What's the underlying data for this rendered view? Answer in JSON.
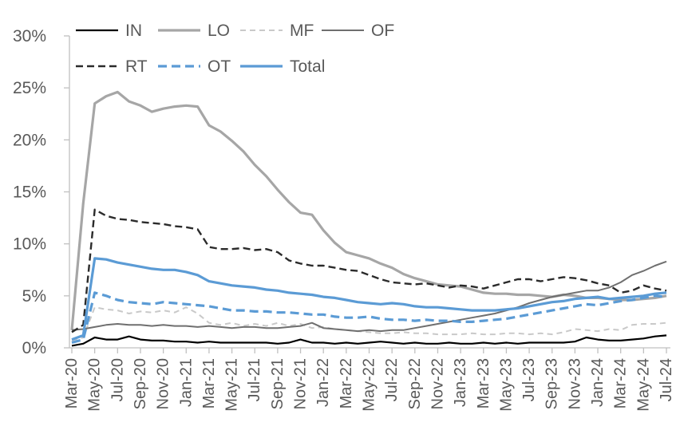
{
  "chart_data": {
    "type": "line",
    "title": "",
    "grid": false,
    "legend_position": "top",
    "ylim": [
      0,
      30
    ],
    "y_tick_labels": [
      "0%",
      "5%",
      "10%",
      "15%",
      "20%",
      "25%",
      "30%"
    ],
    "y_tick_values": [
      0,
      5,
      10,
      15,
      20,
      25,
      30
    ],
    "x_tick_labels": [
      "Mar-20",
      "May-20",
      "Jul-20",
      "Sep-20",
      "Nov-20",
      "Jan-21",
      "Mar-21",
      "May-21",
      "Jul-21",
      "Sep-21",
      "Nov-21",
      "Jan-22",
      "Mar-22",
      "May-22",
      "Jul-22",
      "Sep-22",
      "Nov-22",
      "Jan-23",
      "Mar-23",
      "May-23",
      "Jul-23",
      "Sep-23",
      "Nov-23",
      "Jan-24",
      "Mar-24",
      "May-24",
      "Jul-24"
    ],
    "x_tick_every_n_points": 2,
    "points_count": 53,
    "axis_color": "#c0c0c0",
    "label_color": "#595959",
    "legend_rows": [
      [
        "IN",
        "LO",
        "MF",
        "OF"
      ],
      [
        "RT",
        "OT",
        "Total"
      ]
    ],
    "series": [
      {
        "name": "IN",
        "color": "#000000",
        "style": "solid",
        "width": 2.2,
        "dash": "",
        "values": [
          0.2,
          0.4,
          1.0,
          0.8,
          0.8,
          1.1,
          0.8,
          0.7,
          0.7,
          0.6,
          0.6,
          0.5,
          0.6,
          0.5,
          0.5,
          0.5,
          0.5,
          0.5,
          0.4,
          0.5,
          0.8,
          0.5,
          0.5,
          0.4,
          0.5,
          0.4,
          0.5,
          0.6,
          0.5,
          0.4,
          0.5,
          0.4,
          0.4,
          0.5,
          0.4,
          0.4,
          0.5,
          0.4,
          0.5,
          0.4,
          0.5,
          0.5,
          0.5,
          0.5,
          0.6,
          1.0,
          0.8,
          0.7,
          0.7,
          0.8,
          0.9,
          1.1,
          1.2
        ]
      },
      {
        "name": "LO",
        "color": "#a6a6a6",
        "style": "solid",
        "width": 3.2,
        "dash": "",
        "values": [
          1.7,
          13.9,
          23.5,
          24.2,
          24.6,
          23.7,
          23.3,
          22.7,
          23.0,
          23.2,
          23.3,
          23.2,
          21.4,
          20.8,
          19.9,
          18.9,
          17.6,
          16.5,
          15.2,
          14.0,
          13.0,
          12.8,
          11.3,
          10.1,
          9.2,
          8.9,
          8.6,
          8.1,
          7.7,
          7.1,
          6.7,
          6.4,
          6.1,
          6.0,
          5.9,
          5.6,
          5.3,
          5.2,
          5.2,
          5.1,
          5.1,
          5.0,
          4.9,
          5.1,
          5.0,
          4.8,
          4.8,
          4.7,
          4.6,
          4.6,
          4.7,
          4.8,
          5.0
        ]
      },
      {
        "name": "MF",
        "color": "#c9c9c9",
        "style": "dashed",
        "width": 2.0,
        "dash": "7 5",
        "values": [
          0.7,
          1.0,
          3.9,
          3.7,
          3.6,
          3.3,
          3.5,
          3.4,
          3.6,
          3.4,
          3.9,
          3.3,
          2.4,
          2.2,
          2.4,
          2.1,
          2.3,
          2.1,
          2.4,
          2.1,
          2.3,
          1.9,
          2.0,
          1.8,
          1.7,
          1.6,
          1.5,
          1.4,
          1.4,
          1.5,
          1.4,
          1.4,
          1.3,
          1.3,
          1.3,
          1.4,
          1.3,
          1.3,
          1.4,
          1.4,
          1.3,
          1.4,
          1.3,
          1.5,
          1.8,
          1.7,
          1.6,
          1.8,
          1.7,
          2.2,
          2.3,
          2.3,
          2.4
        ]
      },
      {
        "name": "OF",
        "color": "#6f6f6f",
        "style": "solid",
        "width": 2.0,
        "dash": "",
        "values": [
          1.7,
          1.8,
          2.0,
          2.2,
          2.3,
          2.2,
          2.2,
          2.1,
          2.2,
          2.1,
          2.1,
          2.0,
          2.1,
          2.0,
          1.9,
          2.0,
          2.0,
          1.9,
          1.9,
          2.0,
          2.1,
          2.4,
          1.9,
          1.8,
          1.7,
          1.6,
          1.7,
          1.6,
          1.7,
          1.7,
          1.9,
          2.1,
          2.3,
          2.5,
          2.7,
          2.9,
          3.1,
          3.3,
          3.6,
          3.9,
          4.3,
          4.6,
          4.9,
          5.1,
          5.3,
          5.5,
          5.5,
          5.8,
          6.3,
          7.0,
          7.4,
          7.9,
          8.3
        ]
      },
      {
        "name": "RT",
        "color": "#2b2b2b",
        "style": "dashed",
        "width": 2.4,
        "dash": "9 5",
        "values": [
          1.5,
          2.2,
          13.3,
          12.7,
          12.4,
          12.3,
          12.1,
          12.0,
          11.9,
          11.7,
          11.6,
          11.4,
          9.7,
          9.5,
          9.5,
          9.6,
          9.4,
          9.5,
          9.2,
          8.4,
          8.1,
          7.9,
          7.9,
          7.7,
          7.5,
          7.4,
          7.0,
          6.6,
          6.3,
          6.2,
          6.1,
          6.2,
          6.0,
          5.8,
          6.0,
          5.9,
          5.7,
          6.0,
          6.3,
          6.6,
          6.6,
          6.4,
          6.6,
          6.8,
          6.7,
          6.5,
          6.2,
          6.0,
          5.3,
          5.5,
          6.0,
          5.7,
          5.5
        ]
      },
      {
        "name": "OT",
        "color": "#5b9bd5",
        "style": "dashed",
        "width": 3.2,
        "dash": "11 6",
        "values": [
          0.5,
          0.8,
          5.3,
          5.0,
          4.6,
          4.4,
          4.3,
          4.2,
          4.4,
          4.3,
          4.2,
          4.1,
          4.0,
          3.8,
          3.6,
          3.6,
          3.5,
          3.5,
          3.4,
          3.4,
          3.3,
          3.2,
          3.2,
          3.0,
          2.9,
          2.9,
          3.0,
          2.8,
          2.7,
          2.7,
          2.6,
          2.7,
          2.6,
          2.6,
          2.5,
          2.5,
          2.6,
          2.7,
          2.8,
          3.0,
          3.2,
          3.4,
          3.6,
          3.8,
          4.0,
          4.2,
          4.1,
          4.3,
          4.5,
          4.6,
          4.8,
          5.0,
          4.9
        ]
      },
      {
        "name": "Total",
        "color": "#5b9bd5",
        "style": "solid",
        "width": 3.2,
        "dash": "",
        "values": [
          0.8,
          1.2,
          8.6,
          8.5,
          8.2,
          8.0,
          7.8,
          7.6,
          7.5,
          7.5,
          7.3,
          7.0,
          6.4,
          6.2,
          6.0,
          5.9,
          5.8,
          5.6,
          5.5,
          5.3,
          5.2,
          5.1,
          4.9,
          4.8,
          4.6,
          4.4,
          4.3,
          4.2,
          4.3,
          4.2,
          4.0,
          3.9,
          3.9,
          3.8,
          3.7,
          3.6,
          3.6,
          3.6,
          3.7,
          3.8,
          4.0,
          4.2,
          4.4,
          4.5,
          4.7,
          4.8,
          4.9,
          4.7,
          4.8,
          4.9,
          5.0,
          5.2,
          5.3
        ]
      }
    ]
  }
}
